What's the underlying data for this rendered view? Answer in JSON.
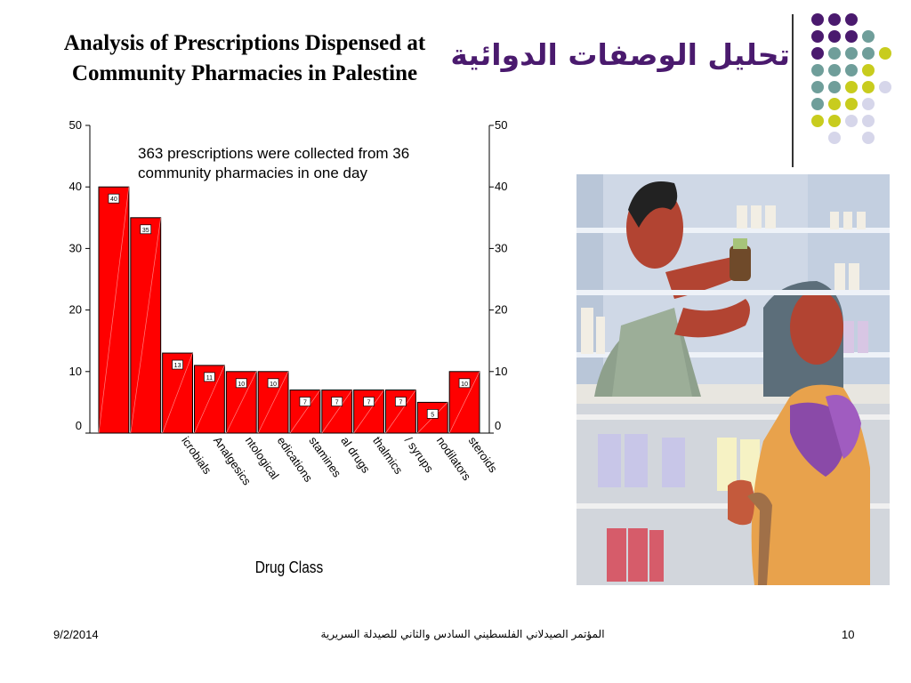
{
  "slide": {
    "title_en_line1": "Analysis of Prescriptions Dispensed at",
    "title_en_line2": "Community Pharmacies in Palestine",
    "title_ar": "تحليل الوصفات الدوائية",
    "accent_color": "#4a1a6e"
  },
  "decoration": {
    "dot_colors": [
      "#4a1a6e",
      "#6f9e9a",
      "#c8cc1e",
      "#d6d6ea"
    ]
  },
  "chart_data": {
    "type": "bar",
    "annotation": "363 prescriptions were collected from 36 community pharmacies in one day",
    "xlabel": "Drug Class",
    "ylabel": "",
    "ylim": [
      0,
      50
    ],
    "yticks": [
      0,
      10,
      20,
      30,
      40,
      50
    ],
    "categories": [
      "",
      "",
      "icrobials",
      "Analgesics",
      "ntological",
      "edications",
      "stamines",
      "al drugs",
      "thalmics",
      "/ syrups",
      "nodilators",
      "steroids"
    ],
    "values": [
      40,
      35,
      13,
      11,
      10,
      10,
      7,
      7,
      7,
      7,
      5,
      10
    ],
    "data_labels": [
      "40",
      "35",
      "13",
      "11",
      "10",
      "10",
      "7",
      "7",
      "7",
      "7",
      "5",
      "10"
    ],
    "bar_color": "#ff0000"
  },
  "footer": {
    "date": "9/2/2014",
    "conference": "المؤتمر الصيدلاني الفلسطيني السادس والثاني للصيدلة السريرية",
    "page": "10"
  }
}
